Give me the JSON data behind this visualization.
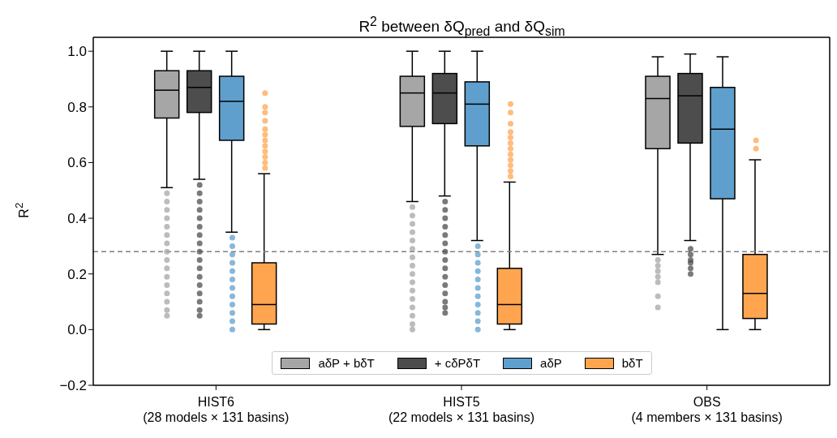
{
  "chart_data": {
    "type": "box",
    "title": "R$^{2}$ between δQ$_{pred}$ and δQ$_{sim}$",
    "ylabel": "R$^{2}$",
    "categories": [
      "HIST6\n(28 models × 131 basins)",
      "HIST5\n(22 models × 131 basins)",
      "OBS\n(4 members × 131 basins)"
    ],
    "ylim": [
      -0.2,
      1.05
    ],
    "yticks": [
      {
        "value": -0.2,
        "label": "−0.2"
      },
      {
        "value": 0,
        "label": "0.0"
      },
      {
        "value": 0.2,
        "label": "0.2"
      },
      {
        "value": 0.4,
        "label": "0.4"
      },
      {
        "value": 0.6,
        "label": "0.6"
      },
      {
        "value": 0.8,
        "label": "0.8"
      },
      {
        "value": 1,
        "label": "1.0"
      }
    ],
    "legend": "bottom",
    "ref_lines": [
      {
        "axis": "y",
        "value": 0.28,
        "color": "#808080",
        "line_style": "dashed"
      }
    ],
    "series": [
      {
        "name": "aδP + bδT",
        "color": "#a6a6a6",
        "boxes": [
          {
            "low": 0.51,
            "q1": 0.76,
            "median": 0.86,
            "q3": 0.93,
            "high": 1.0,
            "outliers": [
              0.49,
              0.46,
              0.43,
              0.4,
              0.37,
              0.34,
              0.31,
              0.28,
              0.25,
              0.22,
              0.19,
              0.16,
              0.13,
              0.1,
              0.07,
              0.05
            ]
          },
          {
            "low": 0.46,
            "q1": 0.73,
            "median": 0.85,
            "q3": 0.91,
            "high": 1.0,
            "outliers": [
              0.44,
              0.41,
              0.38,
              0.35,
              0.32,
              0.29,
              0.26,
              0.23,
              0.2,
              0.17,
              0.14,
              0.11,
              0.08,
              0.05,
              0.02,
              0.0
            ]
          },
          {
            "low": 0.27,
            "q1": 0.65,
            "median": 0.83,
            "q3": 0.91,
            "high": 0.98,
            "outliers": [
              0.25,
              0.23,
              0.21,
              0.19,
              0.17,
              0.12,
              0.08
            ]
          }
        ]
      },
      {
        "name": "+ cδPδT",
        "color": "#4d4d4d",
        "boxes": [
          {
            "low": 0.54,
            "q1": 0.78,
            "median": 0.87,
            "q3": 0.93,
            "high": 1.0,
            "outliers": [
              0.52,
              0.49,
              0.46,
              0.43,
              0.4,
              0.37,
              0.34,
              0.31,
              0.28,
              0.25,
              0.22,
              0.19,
              0.16,
              0.13,
              0.1,
              0.07,
              0.05
            ]
          },
          {
            "low": 0.48,
            "q1": 0.74,
            "median": 0.85,
            "q3": 0.92,
            "high": 1.0,
            "outliers": [
              0.46,
              0.43,
              0.4,
              0.37,
              0.34,
              0.31,
              0.28,
              0.25,
              0.22,
              0.19,
              0.16,
              0.13,
              0.1,
              0.08,
              0.06
            ]
          },
          {
            "low": 0.32,
            "q1": 0.67,
            "median": 0.84,
            "q3": 0.92,
            "high": 0.99,
            "outliers": [
              0.29,
              0.27,
              0.25,
              0.24,
              0.22,
              0.2
            ]
          }
        ]
      },
      {
        "name": "aδP",
        "color": "#5f9fcd",
        "boxes": [
          {
            "low": 0.35,
            "q1": 0.68,
            "median": 0.82,
            "q3": 0.91,
            "high": 1.0,
            "outliers": [
              0.33,
              0.3,
              0.27,
              0.24,
              0.21,
              0.18,
              0.15,
              0.12,
              0.09,
              0.06,
              0.03,
              0.0
            ]
          },
          {
            "low": 0.32,
            "q1": 0.66,
            "median": 0.81,
            "q3": 0.89,
            "high": 1.0,
            "outliers": [
              0.3,
              0.27,
              0.24,
              0.21,
              0.18,
              0.15,
              0.12,
              0.09,
              0.06,
              0.03,
              0.0
            ]
          },
          {
            "low": 0.0,
            "q1": 0.47,
            "median": 0.72,
            "q3": 0.87,
            "high": 0.98
          }
        ]
      },
      {
        "name": "bδT",
        "color": "#ffa550",
        "boxes": [
          {
            "low": 0.0,
            "q1": 0.02,
            "median": 0.09,
            "q3": 0.24,
            "high": 0.56,
            "outliers": [
              0.58,
              0.6,
              0.62,
              0.64,
              0.66,
              0.68,
              0.7,
              0.72,
              0.75,
              0.78,
              0.8,
              0.85
            ]
          },
          {
            "low": 0.0,
            "q1": 0.02,
            "median": 0.09,
            "q3": 0.22,
            "high": 0.53,
            "outliers": [
              0.55,
              0.57,
              0.59,
              0.61,
              0.63,
              0.65,
              0.67,
              0.69,
              0.71,
              0.74,
              0.78,
              0.81
            ]
          },
          {
            "low": 0.0,
            "q1": 0.04,
            "median": 0.13,
            "q3": 0.27,
            "high": 0.61,
            "outliers": [
              0.65,
              0.68
            ]
          }
        ]
      }
    ]
  }
}
